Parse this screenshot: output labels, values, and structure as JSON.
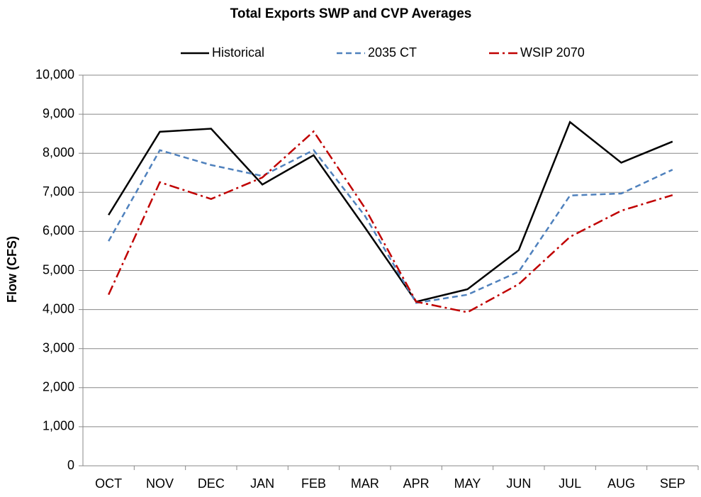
{
  "chart_data": {
    "type": "line",
    "title": "Total Exports SWP and CVP Averages",
    "y_label": "Flow (CFS)",
    "categories": [
      "OCT",
      "NOV",
      "DEC",
      "JAN",
      "FEB",
      "MAR",
      "APR",
      "MAY",
      "JUN",
      "JUL",
      "AUG",
      "SEP"
    ],
    "series": [
      {
        "name": "Historical",
        "color": "#000000",
        "line_style": "solid",
        "values": [
          6420,
          8550,
          8630,
          7200,
          7950,
          6100,
          4200,
          4520,
          5520,
          8800,
          7760,
          8300
        ]
      },
      {
        "name": "2035 CT",
        "color": "#4f81bd",
        "line_style": "dashed",
        "values": [
          5750,
          8080,
          7700,
          7420,
          8080,
          6400,
          4170,
          4380,
          4970,
          6920,
          6970,
          7580
        ]
      },
      {
        "name": "WSIP 2070",
        "color": "#c00000",
        "line_style": "dashdot",
        "values": [
          4380,
          7260,
          6830,
          7380,
          8560,
          6600,
          4200,
          3930,
          4650,
          5860,
          6530,
          6930
        ]
      }
    ],
    "ylim": [
      0,
      10000
    ],
    "yticks": [
      0,
      {
        "value": 1000,
        "label": "1,000"
      },
      {
        "value": 2000,
        "label": "2,000"
      },
      {
        "value": 3000,
        "label": "3,000"
      },
      {
        "value": 4000,
        "label": "4,000"
      },
      {
        "value": 5000,
        "label": "5,000"
      },
      {
        "value": 6000,
        "label": "6,000"
      },
      {
        "value": 7000,
        "label": "7,000"
      },
      {
        "value": 8000,
        "label": "8,000"
      },
      {
        "value": 9000,
        "label": "9,000"
      },
      {
        "value": 10000,
        "label": "10,000"
      }
    ],
    "grid": true,
    "legend": "top"
  }
}
